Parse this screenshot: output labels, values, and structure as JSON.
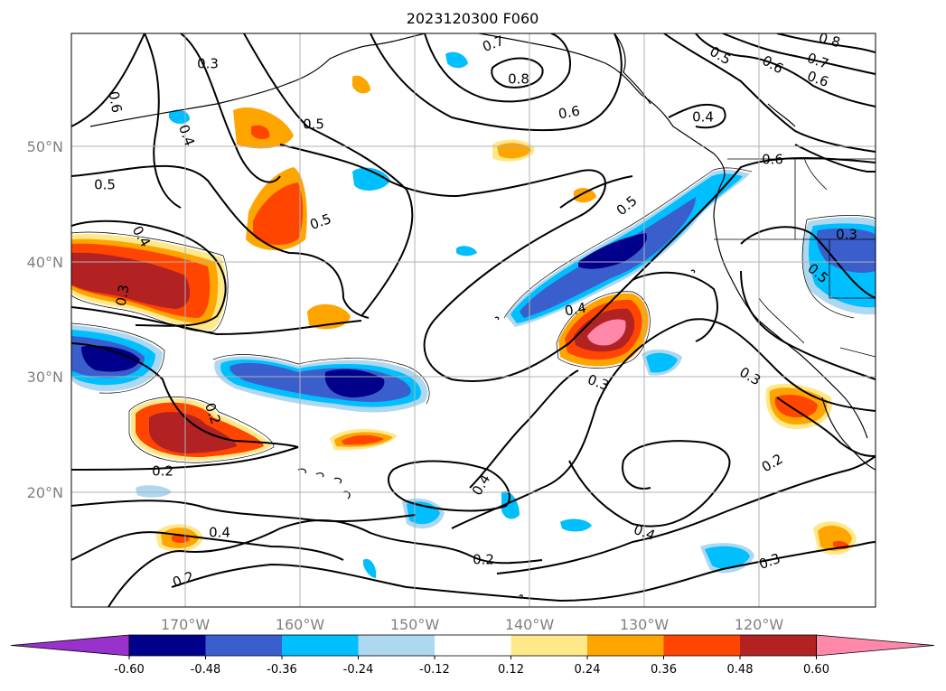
{
  "map": {
    "title": "2023120300 F060",
    "lat_labels": [
      "50°N",
      "40°N",
      "30°N",
      "20°N"
    ],
    "lon_labels": [
      "170°W",
      "160°W",
      "150°W",
      "140°W",
      "130°W",
      "120°W"
    ],
    "contour_labels": [
      "0.3",
      "0.5",
      "0.6",
      "0.4",
      "0.5",
      "0.4",
      "0.3",
      "0.5",
      "0.7",
      "0.8",
      "0.6",
      "0.5",
      "0.4",
      "0.3",
      "0.4",
      "0.5",
      "0.6",
      "0.7",
      "0.8",
      "0.6",
      "0.3",
      "0.2",
      "0.4",
      "0.2",
      "0.2",
      "0.4",
      "0.2",
      "0.3",
      "0.2",
      "0.4",
      "0.5",
      "0.3",
      "0.6"
    ],
    "colorbar": {
      "tick_labels": [
        "-0.60",
        "-0.48",
        "-0.36",
        "-0.24",
        "-0.12",
        "0.12",
        "0.24",
        "0.36",
        "0.48",
        "0.60"
      ],
      "colors": [
        "#9932cc",
        "#00008b",
        "#3a5fcd",
        "#00bfff",
        "#add8f0",
        "#ffffff",
        "#ffe88a",
        "#ffa500",
        "#ff4500",
        "#b22222",
        "#ff88aa"
      ]
    },
    "colors": {
      "neg_extreme": "#9932cc",
      "neg_strong": "#00008b",
      "neg_mid": "#3a5fcd",
      "neg_weak": "#00bfff",
      "neg_faint": "#add8f0",
      "pos_faint": "#ffe88a",
      "pos_weak": "#ffa500",
      "pos_mid": "#ff4500",
      "pos_strong": "#b22222",
      "pos_extreme": "#ff88aa"
    }
  }
}
